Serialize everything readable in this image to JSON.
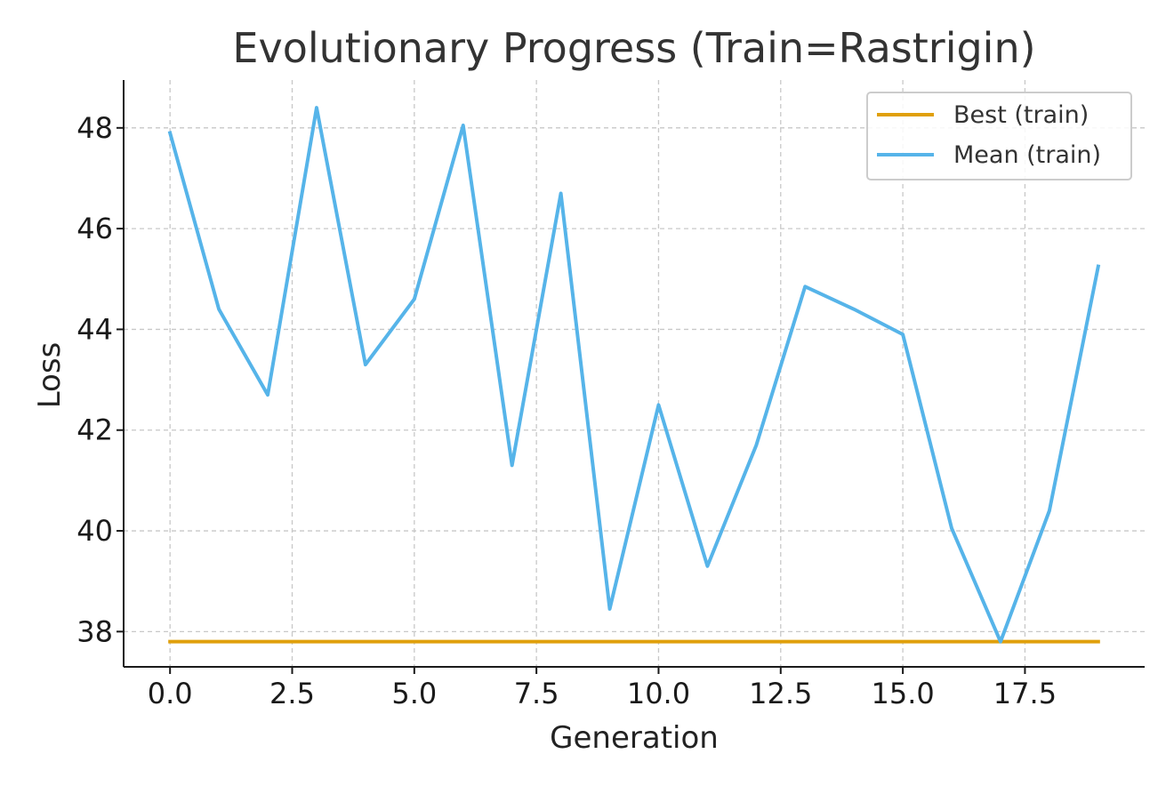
{
  "chart_data": {
    "type": "line",
    "title": "Evolutionary Progress (Train=Rastrigin)",
    "xlabel": "Generation",
    "ylabel": "Loss",
    "xlim": [
      -0.95,
      19.95
    ],
    "ylim": [
      37.3,
      48.95
    ],
    "x_ticks": [
      0.0,
      2.5,
      5.0,
      7.5,
      10.0,
      12.5,
      15.0,
      17.5
    ],
    "x_tick_labels": [
      "0.0",
      "2.5",
      "5.0",
      "7.5",
      "10.0",
      "12.5",
      "15.0",
      "17.5"
    ],
    "y_ticks": [
      38,
      40,
      42,
      44,
      46,
      48
    ],
    "y_tick_labels": [
      "38",
      "40",
      "42",
      "44",
      "46",
      "48"
    ],
    "grid": true,
    "legend_position": "top-right",
    "x": [
      0,
      1,
      2,
      3,
      4,
      5,
      6,
      7,
      8,
      9,
      10,
      11,
      12,
      13,
      14,
      15,
      16,
      17,
      18,
      19
    ],
    "series": [
      {
        "name": "Best (train)",
        "color": "#E0A00C",
        "values": [
          37.8,
          37.8,
          37.8,
          37.8,
          37.8,
          37.8,
          37.8,
          37.8,
          37.8,
          37.8,
          37.8,
          37.8,
          37.8,
          37.8,
          37.8,
          37.8,
          37.8,
          37.8,
          37.8,
          37.8
        ]
      },
      {
        "name": "Mean (train)",
        "color": "#56B4E9",
        "values": [
          47.9,
          44.4,
          42.7,
          48.4,
          43.3,
          44.6,
          48.05,
          41.3,
          46.7,
          38.45,
          42.5,
          39.3,
          41.7,
          44.85,
          44.4,
          43.9,
          40.05,
          37.8,
          40.4,
          45.25
        ]
      }
    ]
  }
}
